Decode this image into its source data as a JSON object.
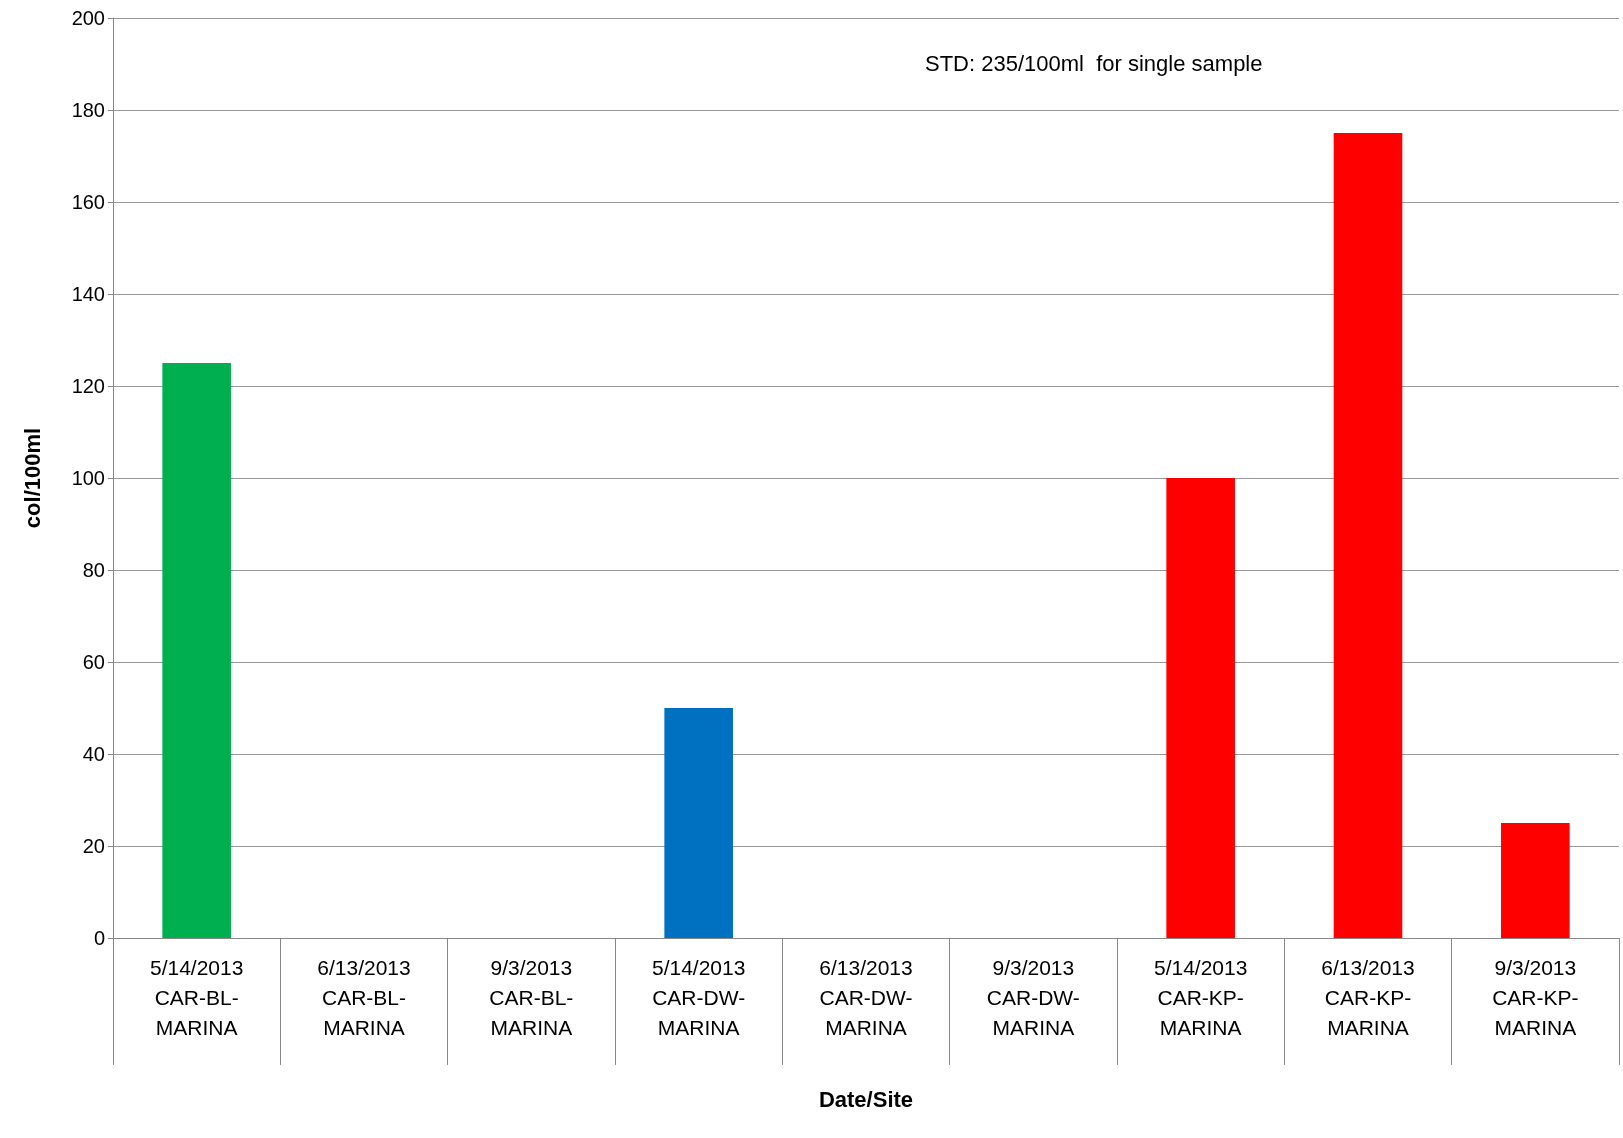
{
  "chart_data": {
    "type": "bar",
    "xlabel": "Date/Site",
    "ylabel": "col/100ml",
    "categories": [
      "5/14/2013 CAR-BL-MARINA",
      "6/13/2013 CAR-BL-MARINA",
      "9/3/2013 CAR-BL-MARINA",
      "5/14/2013 CAR-DW-MARINA",
      "6/13/2013 CAR-DW-MARINA",
      "9/3/2013 CAR-DW-MARINA",
      "5/14/2013 CAR-KP-MARINA",
      "6/13/2013 CAR-KP-MARINA",
      "9/3/2013 CAR-KP-MARINA"
    ],
    "values": [
      125,
      null,
      null,
      50,
      null,
      null,
      100,
      175,
      25
    ],
    "colors": [
      "#00b050",
      "#00b050",
      "#00b050",
      "#0070c0",
      "#0070c0",
      "#0070c0",
      "#ff0000",
      "#ff0000",
      "#ff0000"
    ],
    "ylim": [
      0,
      200
    ],
    "yticks": [
      0,
      20,
      40,
      60,
      80,
      100,
      120,
      140,
      160,
      180,
      200
    ],
    "grid": "y",
    "annotations": [
      "STD: 235/100ml  for single sample"
    ]
  }
}
